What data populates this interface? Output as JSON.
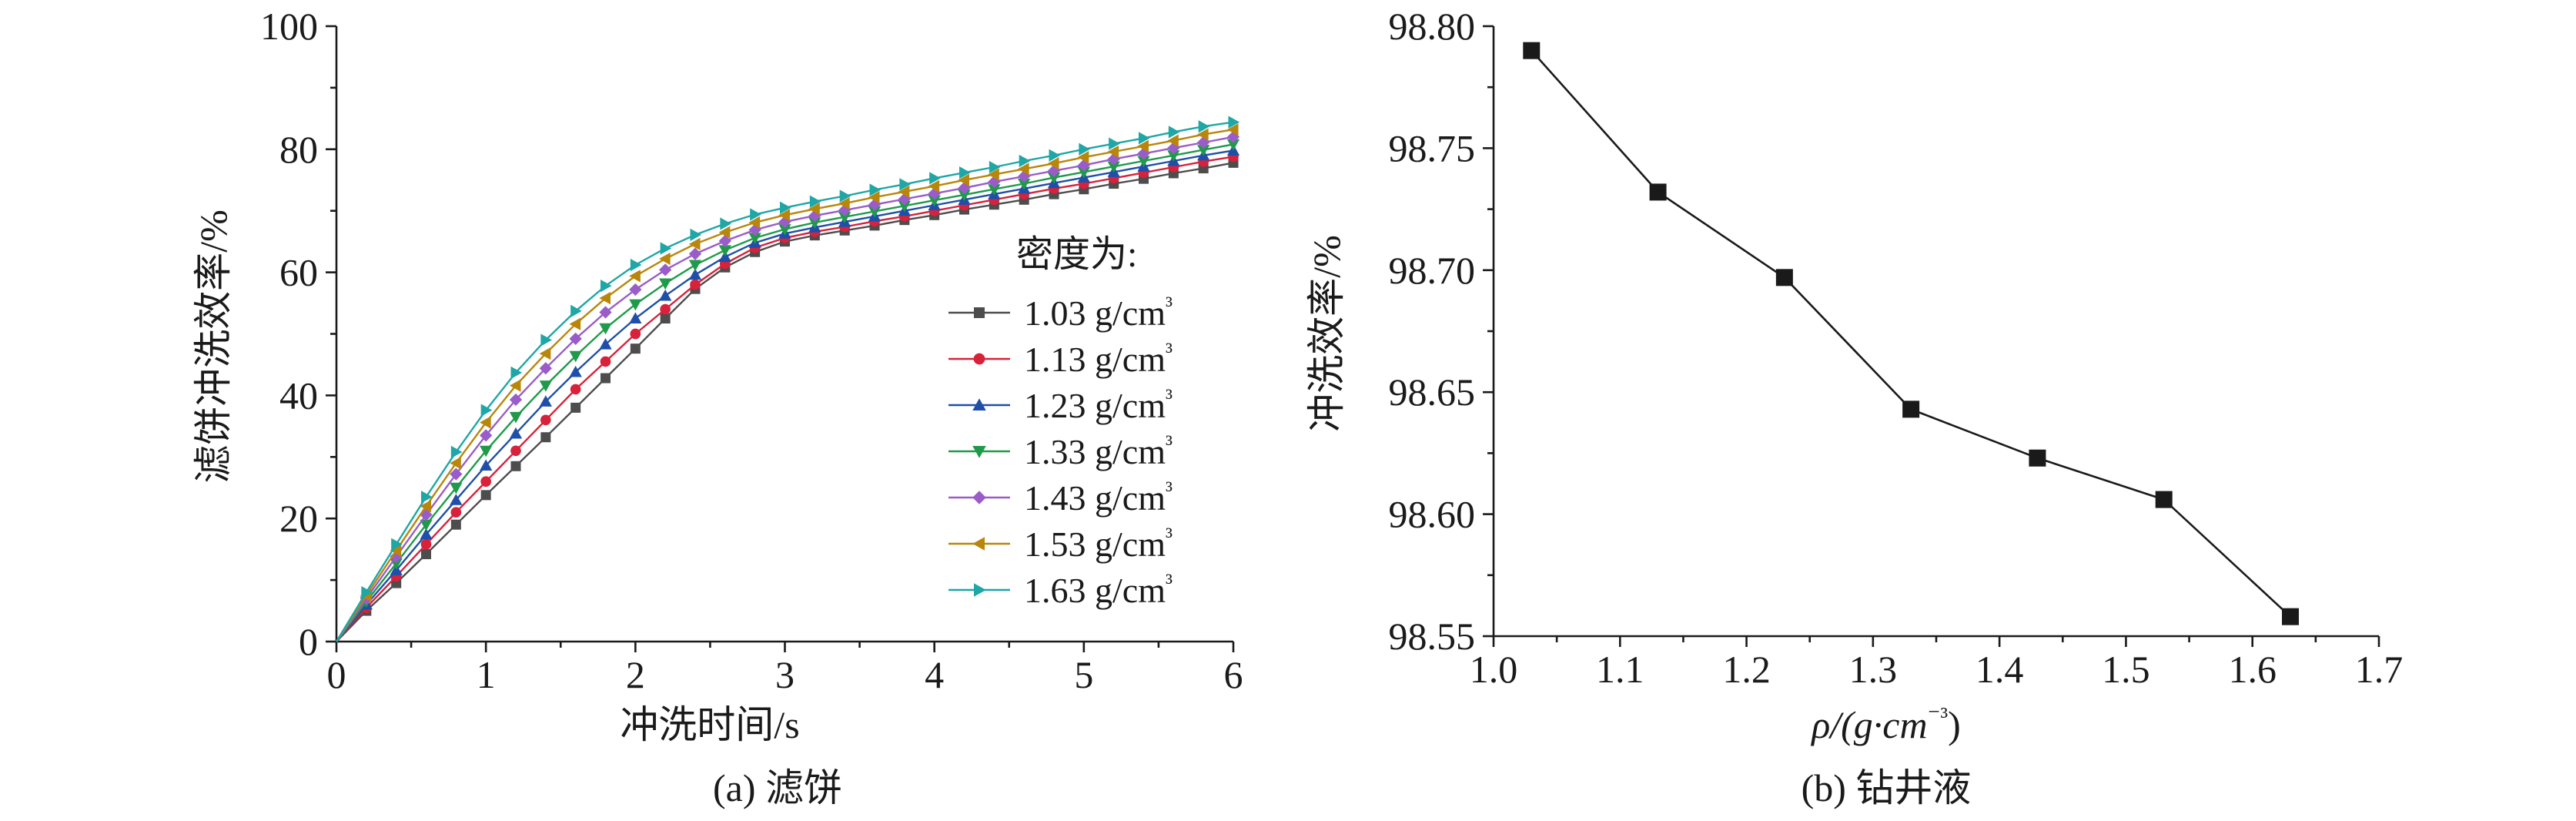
{
  "figure": {
    "panel_a_caption": "(a) 滤饼",
    "panel_b_caption": "(b) 钻井液"
  },
  "colors": {
    "axis": "#1a1a1a",
    "series": [
      "#4d4d4d",
      "#d8213a",
      "#1f4fa8",
      "#1f9a4a",
      "#9a5cc8",
      "#b8860b",
      "#1fa6a6"
    ],
    "panel_b_series": "#1a1a1a"
  },
  "chart_data": [
    {
      "type": "line",
      "title": "",
      "xlabel": "冲洗时间/s",
      "ylabel": "滤饼冲洗效率/%",
      "xlim": [
        0,
        6
      ],
      "ylim": [
        0,
        100
      ],
      "x_ticks": [
        "0",
        "1",
        "2",
        "3",
        "4",
        "5",
        "6"
      ],
      "y_ticks": [
        "0",
        "20",
        "40",
        "60",
        "80",
        "100"
      ],
      "legend_title": "密度为:",
      "legend_position": "right",
      "grid": false,
      "markers": [
        "square",
        "circle",
        "triangle-up",
        "triangle-down",
        "diamond",
        "triangle-left",
        "triangle-right"
      ],
      "x": [
        0,
        0.2,
        0.4,
        0.6,
        0.8,
        1.0,
        1.2,
        1.4,
        1.6,
        1.8,
        2.0,
        2.2,
        2.4,
        2.6,
        2.8,
        3.0,
        3.2,
        3.4,
        3.6,
        3.8,
        4.0,
        4.2,
        4.4,
        4.6,
        4.8,
        5.0,
        5.2,
        5.4,
        5.6,
        5.8,
        6.0
      ],
      "series": [
        {
          "name": "1.03 g/cm³",
          "values": [
            0,
            5,
            9.5,
            14.2,
            19,
            23.8,
            28.5,
            33.2,
            38,
            42.8,
            47.6,
            52.5,
            57.3,
            60.8,
            63.3,
            65,
            66,
            66.8,
            67.6,
            68.5,
            69.3,
            70.2,
            71,
            71.8,
            72.7,
            73.5,
            74.4,
            75.2,
            76.1,
            76.9,
            77.8
          ]
        },
        {
          "name": "1.13 g/cm³",
          "values": [
            0,
            5.5,
            10.6,
            15.8,
            21,
            26,
            31,
            36,
            41,
            45.5,
            50,
            54,
            58,
            61.4,
            64,
            65.6,
            66.6,
            67.4,
            68.3,
            69.1,
            70,
            70.9,
            71.8,
            72.7,
            73.6,
            74.4,
            75.3,
            76.2,
            77.1,
            78,
            78.8
          ]
        },
        {
          "name": "1.23 g/cm³",
          "values": [
            0,
            6,
            11.6,
            17.4,
            23,
            28.6,
            33.8,
            39,
            43.8,
            48.3,
            52.5,
            56.2,
            59.6,
            62.5,
            64.8,
            66.3,
            67.3,
            68.2,
            69.1,
            70,
            70.9,
            71.8,
            72.7,
            73.6,
            74.5,
            75.4,
            76.3,
            77.2,
            78.1,
            79,
            79.8
          ]
        },
        {
          "name": "1.33 g/cm³",
          "values": [
            0,
            6.5,
            12.7,
            19,
            25,
            31,
            36.5,
            41.6,
            46.4,
            50.9,
            54.8,
            58.2,
            61.2,
            63.6,
            65.6,
            67,
            68.1,
            69,
            69.9,
            70.8,
            71.7,
            72.6,
            73.5,
            74.4,
            75.4,
            76.3,
            77.2,
            78.1,
            79,
            79.9,
            80.8
          ]
        },
        {
          "name": "1.43 g/cm³",
          "values": [
            0,
            7,
            13.8,
            20.6,
            27.2,
            33.5,
            39.3,
            44.4,
            49.2,
            53.5,
            57.2,
            60.4,
            63,
            65.1,
            66.9,
            68.2,
            69.2,
            70.1,
            71,
            71.9,
            72.8,
            73.7,
            74.7,
            75.6,
            76.5,
            77.4,
            78.4,
            79.3,
            80.2,
            81.1,
            82
          ]
        },
        {
          "name": "1.53 g/cm³",
          "values": [
            0,
            7.5,
            14.8,
            22,
            29,
            35.6,
            41.6,
            46.8,
            51.6,
            55.8,
            59.4,
            62.2,
            64.6,
            66.5,
            68.1,
            69.3,
            70.3,
            71.2,
            72.2,
            73.1,
            74,
            75,
            75.9,
            76.8,
            77.7,
            78.7,
            79.6,
            80.5,
            81.4,
            82.4,
            83.2
          ]
        },
        {
          "name": "1.63 g/cm³",
          "values": [
            0,
            8,
            15.8,
            23.5,
            30.8,
            37.6,
            43.7,
            49,
            53.7,
            57.8,
            61.2,
            63.9,
            66.1,
            67.9,
            69.4,
            70.5,
            71.5,
            72.4,
            73.4,
            74.3,
            75.3,
            76.2,
            77.1,
            78.1,
            79,
            80,
            80.9,
            81.8,
            82.8,
            83.7,
            84.4
          ]
        }
      ]
    },
    {
      "type": "line",
      "title": "",
      "xlabel": "ρ/(g·cm⁻³)",
      "ylabel": "冲洗效率/%",
      "xlim": [
        1.0,
        1.7
      ],
      "ylim": [
        98.55,
        98.8
      ],
      "x_ticks": [
        "1.0",
        "1.1",
        "1.2",
        "1.3",
        "1.4",
        "1.5",
        "1.6",
        "1.7"
      ],
      "y_ticks": [
        "98.55",
        "98.60",
        "98.65",
        "98.70",
        "98.75",
        "98.80"
      ],
      "grid": false,
      "marker": "square",
      "x": [
        1.03,
        1.13,
        1.23,
        1.33,
        1.43,
        1.53,
        1.63
      ],
      "values": [
        98.79,
        98.732,
        98.697,
        98.643,
        98.623,
        98.606,
        98.558
      ]
    }
  ]
}
